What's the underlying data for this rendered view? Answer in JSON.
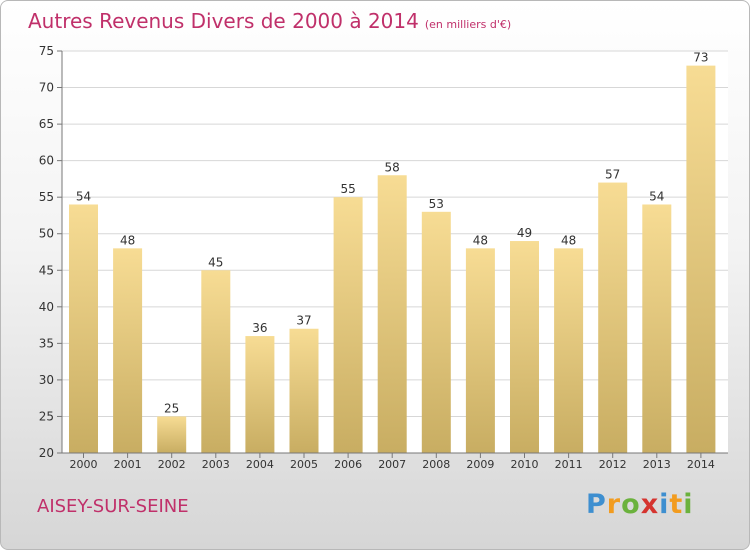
{
  "title": "Autres Revenus Divers de 2000 à 2014",
  "subtitle": "(en milliers d'€)",
  "location": "AISEY-SUR-SEINE",
  "brand": {
    "letters": [
      "P",
      "r",
      "o",
      "x",
      "i",
      "t",
      "i"
    ],
    "colors": [
      "#3e8fd0",
      "#f29c1f",
      "#6bb23d",
      "#d5342f",
      "#3e8fd0",
      "#f29c1f",
      "#6bb23d"
    ]
  },
  "colors": {
    "title": "#c0306a",
    "bar_light": "#f7dc94",
    "bar_dark": "#c8ad62",
    "grid": "#d7d7d7",
    "text": "#333333"
  },
  "chart_data": {
    "type": "bar",
    "categories": [
      "2000",
      "2001",
      "2002",
      "2003",
      "2004",
      "2005",
      "2006",
      "2007",
      "2008",
      "2009",
      "2010",
      "2011",
      "2012",
      "2013",
      "2014"
    ],
    "values": [
      54,
      48,
      25,
      45,
      36,
      37,
      55,
      58,
      53,
      48,
      49,
      48,
      57,
      54,
      73
    ],
    "ylim": [
      20,
      75
    ],
    "yticks": [
      20,
      25,
      30,
      35,
      40,
      45,
      50,
      55,
      60,
      65,
      70,
      75
    ],
    "grid": true,
    "data_labels": true
  }
}
